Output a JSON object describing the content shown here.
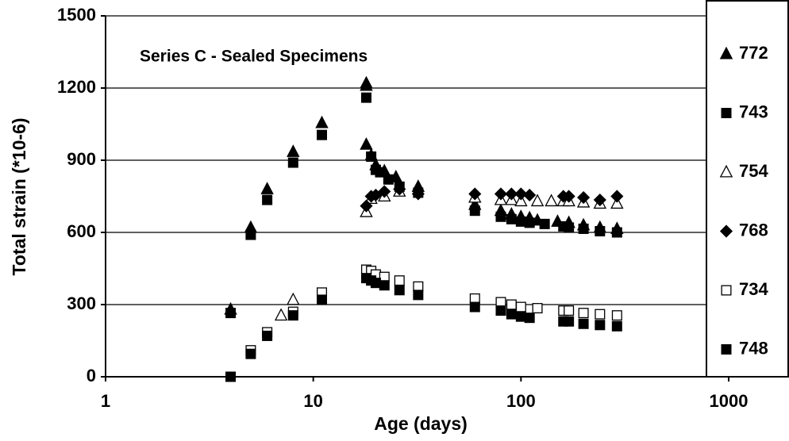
{
  "chart_data": {
    "type": "scatter",
    "title": "Series C - Sealed Specimens",
    "x_label": "Age (days)",
    "y_label": "Total strain (*10-6)",
    "xlim": [
      1,
      1000
    ],
    "xticks": [
      1,
      10,
      100,
      1000
    ],
    "x_log": true,
    "ylim": [
      0,
      1500
    ],
    "yticks": [
      0,
      300,
      600,
      900,
      1200,
      1500
    ],
    "grid": true,
    "legend": "right",
    "series": [
      {
        "name": "772",
        "color": "#000000",
        "marker": "triangle",
        "filled": true,
        "x": [
          4,
          5,
          6,
          8,
          11,
          18,
          18,
          18,
          19,
          20,
          22,
          25,
          32,
          60,
          80,
          90,
          100,
          110,
          120,
          150,
          170,
          200,
          240,
          290
        ],
        "values": [
          280,
          620,
          780,
          935,
          1055,
          1220,
          1210,
          965,
          920,
          880,
          855,
          830,
          790,
          715,
          690,
          675,
          665,
          660,
          650,
          645,
          640,
          630,
          620,
          615
        ]
      },
      {
        "name": "743",
        "color": "#000000",
        "marker": "square",
        "filled": true,
        "x": [
          4,
          5,
          6,
          8,
          11,
          18,
          19,
          20,
          21,
          23,
          26,
          32,
          60,
          80,
          90,
          100,
          110,
          130,
          160,
          170,
          200,
          240,
          290
        ],
        "values": [
          265,
          590,
          735,
          890,
          1005,
          1160,
          915,
          860,
          850,
          820,
          790,
          765,
          690,
          665,
          655,
          645,
          640,
          635,
          625,
          620,
          615,
          605,
          600
        ]
      },
      {
        "name": "754",
        "color": "#000000",
        "marker": "triangle",
        "filled": false,
        "x": [
          7,
          8,
          18,
          19,
          22,
          26,
          60,
          80,
          90,
          100,
          120,
          140,
          160,
          170,
          200,
          240,
          290
        ],
        "values": [
          255,
          320,
          685,
          740,
          750,
          770,
          745,
          735,
          735,
          730,
          730,
          730,
          730,
          730,
          725,
          720,
          720
        ]
      },
      {
        "name": "768",
        "color": "#000000",
        "marker": "diamond",
        "filled": true,
        "x": [
          18,
          19,
          20,
          22,
          26,
          32,
          60,
          80,
          90,
          100,
          110,
          160,
          170,
          200,
          240,
          290
        ],
        "values": [
          710,
          750,
          755,
          770,
          780,
          760,
          760,
          760,
          760,
          760,
          755,
          750,
          750,
          745,
          735,
          750
        ]
      },
      {
        "name": "734",
        "color": "#000000",
        "marker": "square",
        "filled": false,
        "x": [
          5,
          6,
          8,
          11,
          18,
          19,
          20,
          22,
          26,
          32,
          60,
          80,
          90,
          100,
          120,
          160,
          170,
          200,
          240,
          290
        ],
        "values": [
          110,
          185,
          270,
          350,
          445,
          440,
          425,
          415,
          400,
          375,
          325,
          310,
          300,
          290,
          285,
          275,
          275,
          265,
          260,
          255
        ]
      },
      {
        "name": "748",
        "color": "#000000",
        "marker": "square",
        "filled": true,
        "x": [
          4,
          5,
          6,
          8,
          11,
          18,
          19,
          20,
          22,
          26,
          32,
          60,
          80,
          90,
          100,
          110,
          160,
          170,
          200,
          240,
          290
        ],
        "values": [
          0,
          95,
          170,
          255,
          320,
          410,
          400,
          390,
          380,
          360,
          340,
          290,
          275,
          260,
          250,
          245,
          230,
          230,
          220,
          215,
          210
        ]
      }
    ]
  }
}
